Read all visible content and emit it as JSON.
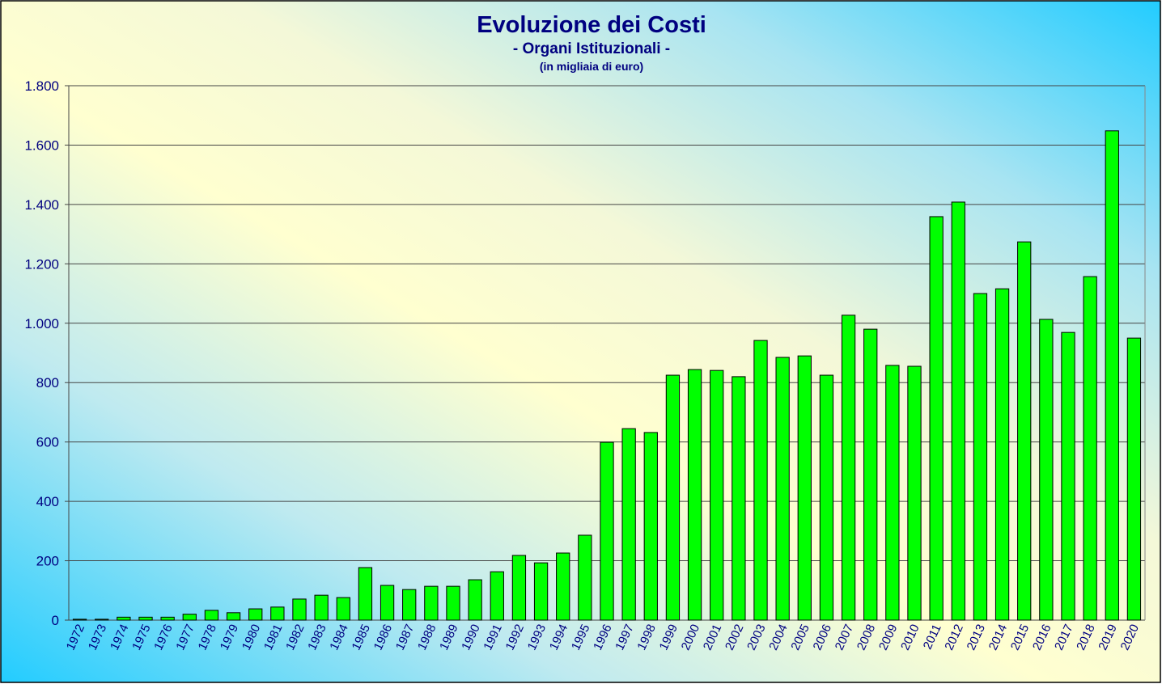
{
  "chart_data": {
    "type": "bar",
    "title": "Evoluzione dei Costi",
    "subtitle": "- Organi Istituzionali -",
    "note": "(in migliaia di euro)",
    "categories": [
      "1972",
      "1973",
      "1974",
      "1975",
      "1976",
      "1977",
      "1978",
      "1979",
      "1980",
      "1981",
      "1982",
      "1983",
      "1984",
      "1985",
      "1986",
      "1987",
      "1988",
      "1989",
      "1990",
      "1991",
      "1992",
      "1993",
      "1994",
      "1995",
      "1996",
      "1997",
      "1998",
      "1999",
      "2000",
      "2001",
      "2002",
      "2003",
      "2004",
      "2005",
      "2006",
      "2007",
      "2008",
      "2009",
      "2010",
      "2011",
      "2012",
      "2013",
      "2014",
      "2015",
      "2016",
      "2017",
      "2018",
      "2019",
      "2020"
    ],
    "values": [
      3,
      3,
      10,
      10,
      10,
      20,
      33,
      25,
      38,
      44,
      71,
      84,
      76,
      177,
      117,
      103,
      114,
      114,
      136,
      163,
      218,
      193,
      226,
      286,
      599,
      645,
      632,
      825,
      844,
      841,
      820,
      942,
      885,
      890,
      825,
      1027,
      980,
      858,
      855,
      1359,
      1408,
      1100,
      1116,
      1274,
      1013,
      969,
      1157,
      1648,
      950
    ],
    "color": "#00ff00",
    "ylim": [
      0,
      1800
    ],
    "yticks": [
      0,
      200,
      400,
      600,
      800,
      {
        "value": 1000,
        "label": "1.000"
      },
      {
        "value": 1200,
        "label": "1.200"
      },
      {
        "value": 1400,
        "label": "1.400"
      },
      {
        "value": 1600,
        "label": "1.600"
      },
      {
        "value": 1800,
        "label": "1.800"
      }
    ],
    "grid": true
  }
}
